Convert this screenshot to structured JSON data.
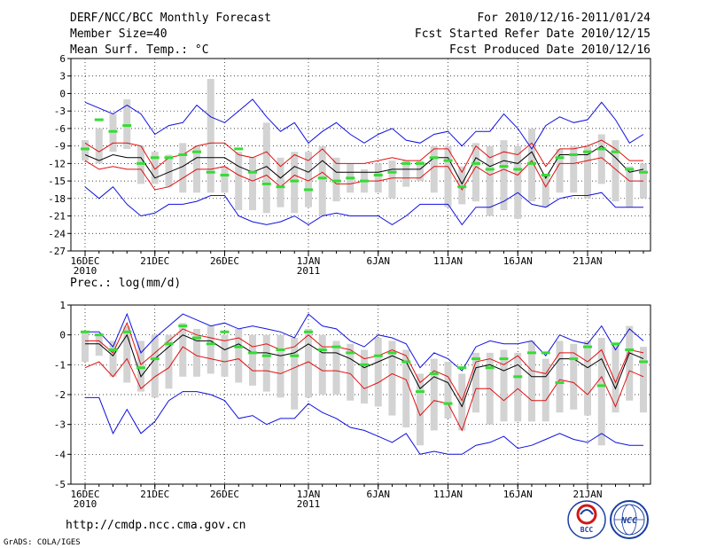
{
  "header": {
    "title": "DERF/NCC/BCC Monthly Forecast",
    "member_size": "Member Size=40",
    "variable": "Mean Surf. Temp.: °C",
    "forecast_for": "For 2010/12/16-2011/01/24",
    "fcst_started": "Fcst Started Refer Date 2010/12/15",
    "fcst_produced": "Fcst Produced Date 2010/12/16"
  },
  "footer": {
    "url": "http://cmdp.ncc.cma.gov.cn",
    "grads_credit": "GrADS: COLA/IGES",
    "logo_bcc": "BCC",
    "logo_ncc": "NCC"
  },
  "colors": {
    "outer_line": "#1010e0",
    "pct_line": "#e01010",
    "mean_line": "#000000",
    "box": "#d3d3d3",
    "marker": "#33dd33",
    "grid": "#000000"
  },
  "chart_data": [
    {
      "type": "box",
      "id": "temperature",
      "title": "Mean Surf. Temp.: °C",
      "ylim": [
        -27,
        6
      ],
      "yticks": [
        6,
        3,
        0,
        -3,
        -6,
        -9,
        -12,
        -15,
        -18,
        -21,
        -24,
        -27
      ],
      "xlim": [
        0,
        40
      ],
      "xticks": [
        {
          "day": 0,
          "label": "16DEC",
          "sub": "2010"
        },
        {
          "day": 5,
          "label": "21DEC",
          "sub": ""
        },
        {
          "day": 10,
          "label": "26DEC",
          "sub": ""
        },
        {
          "day": 16,
          "label": "1JAN",
          "sub": "2011"
        },
        {
          "day": 21,
          "label": "6JAN",
          "sub": ""
        },
        {
          "day": 26,
          "label": "11JAN",
          "sub": ""
        },
        {
          "day": 31,
          "label": "16JAN",
          "sub": ""
        },
        {
          "day": 36,
          "label": "21JAN",
          "sub": ""
        }
      ],
      "series": {
        "max": [
          -1.5,
          -2.5,
          -3.5,
          -2,
          -3.5,
          -7,
          -5.5,
          -5,
          -2,
          -4,
          -5,
          -3,
          -1,
          -4,
          -6.5,
          -5,
          -8.5,
          -6.5,
          -5,
          -7,
          -8.5,
          -7,
          -6,
          -8,
          -8.5,
          -7,
          -6.5,
          -9,
          -6.5,
          -6.5,
          -3.5,
          -6,
          -9.5,
          -5.5,
          -4,
          -5,
          -4.5,
          -1.5,
          -4.5,
          -8.5,
          -7
        ],
        "p90": [
          -8.5,
          -10,
          -8.5,
          -8.5,
          -9,
          -13,
          -11,
          -10.5,
          -9,
          -8.5,
          -8.5,
          -10.5,
          -11,
          -10,
          -12.5,
          -10.5,
          -11.5,
          -9.5,
          -12,
          -12,
          -12,
          -11.5,
          -11,
          -11.5,
          -11.5,
          -9.5,
          -9.5,
          -13.5,
          -9,
          -11,
          -10,
          -10.5,
          -8.5,
          -12.5,
          -9.5,
          -9.5,
          -9,
          -8,
          -9.5,
          -11.5,
          -11.5
        ],
        "mean": [
          -10.5,
          -11.5,
          -10.5,
          -11,
          -11,
          -14.5,
          -13.5,
          -12.5,
          -11,
          -11,
          -11,
          -12.5,
          -13.5,
          -12.5,
          -14.5,
          -12.5,
          -13.5,
          -11.5,
          -13.5,
          -13.5,
          -13.5,
          -13.5,
          -13,
          -13,
          -13,
          -11,
          -11,
          -15.5,
          -11,
          -12.5,
          -11.5,
          -12,
          -10,
          -14.5,
          -10.5,
          -10.5,
          -10.5,
          -9,
          -11,
          -13.5,
          -13
        ],
        "p10": [
          -11.5,
          -13,
          -12.5,
          -13,
          -13,
          -16.5,
          -16,
          -14.5,
          -13,
          -13,
          -12.5,
          -14,
          -15,
          -14,
          -16,
          -14,
          -15,
          -13.5,
          -15.5,
          -15.5,
          -15,
          -15,
          -14.5,
          -14.5,
          -14.5,
          -12.5,
          -12.5,
          -16.5,
          -12.5,
          -14,
          -13,
          -14,
          -11.5,
          -16,
          -12,
          -12,
          -11.5,
          -11,
          -13,
          -15,
          -15
        ],
        "min": [
          -16,
          -18,
          -16,
          -19,
          -21,
          -20.5,
          -19,
          -19,
          -18.5,
          -17.5,
          -17.5,
          -21,
          -22,
          -22.5,
          -22,
          -21,
          -22.5,
          -21,
          -20.5,
          -21,
          -21,
          -21,
          -22.5,
          -21,
          -19,
          -19,
          -19,
          -22.5,
          -19.5,
          -19.5,
          -18.5,
          -17,
          -19,
          -19.5,
          -18,
          -17.5,
          -17.5,
          -17,
          -19.5,
          -19.5,
          -19.5
        ],
        "box_top": [
          -8,
          -6,
          -3.5,
          -1,
          -9,
          -10,
          -10.5,
          -8.5,
          -9,
          2.5,
          -12.5,
          -10,
          -11,
          -5,
          -11,
          -10,
          -10,
          -9,
          -11,
          -12,
          -13,
          -12,
          -11.5,
          -11.5,
          -11.5,
          -9,
          -9,
          -12.5,
          -8.5,
          -9,
          -8,
          -9,
          -6,
          -14,
          -9.5,
          -9,
          -9,
          -7,
          -8,
          -12.5,
          -12
        ],
        "box_bottom": [
          -11.5,
          -12,
          -10,
          -9.5,
          -15.5,
          -15.5,
          -16,
          -17,
          -17,
          -17,
          -17,
          -20,
          -20,
          -20.5,
          -19.5,
          -20.5,
          -19.5,
          -21,
          -18.5,
          -17,
          -17,
          -17,
          -18,
          -16,
          -15,
          -17,
          -19.5,
          -19,
          -18.5,
          -21,
          -20,
          -21.5,
          -18.5,
          -19.5,
          -17,
          -17,
          -18,
          -15.5,
          -18.5,
          -19.5,
          -18
        ],
        "marker": [
          -9.5,
          -4.5,
          -6.5,
          -5.5,
          -12,
          -11,
          -11,
          -10.5,
          -10,
          -13.5,
          -14,
          -9.5,
          -13.5,
          -15.5,
          -16,
          -15,
          -16.5,
          -14.5,
          -15,
          -14.5,
          -15,
          -14,
          -13.5,
          -12,
          -12,
          -11,
          -11.5,
          -16,
          -12,
          -13,
          -12.5,
          -13,
          -12,
          -14,
          -11,
          -10.5,
          -10,
          -9.5,
          -10,
          -13,
          -13.5
        ]
      }
    },
    {
      "type": "box",
      "id": "precipitation",
      "title": "Prec.: log(mm/d)",
      "ylim": [
        -5,
        1
      ],
      "yticks": [
        1,
        0,
        -1,
        -2,
        -3,
        -4,
        -5
      ],
      "xlim": [
        0,
        40
      ],
      "xticks": [
        {
          "day": 0,
          "label": "16DEC",
          "sub": "2010"
        },
        {
          "day": 5,
          "label": "21DEC",
          "sub": ""
        },
        {
          "day": 10,
          "label": "26DEC",
          "sub": ""
        },
        {
          "day": 16,
          "label": "1JAN",
          "sub": "2011"
        },
        {
          "day": 21,
          "label": "6JAN",
          "sub": ""
        },
        {
          "day": 26,
          "label": "11JAN",
          "sub": ""
        },
        {
          "day": 31,
          "label": "16JAN",
          "sub": ""
        },
        {
          "day": 36,
          "label": "21JAN",
          "sub": ""
        }
      ],
      "series": {
        "max": [
          0.1,
          0.1,
          -0.4,
          0.7,
          -0.6,
          -0.1,
          0.3,
          0.7,
          0.5,
          0.3,
          0.4,
          0.2,
          0.3,
          0.2,
          0.1,
          -0.1,
          0.7,
          0.3,
          0.2,
          -0.2,
          -0.4,
          0,
          -0.1,
          -0.3,
          -1.1,
          -0.6,
          -0.8,
          -1.2,
          -0.4,
          -0.2,
          -0.3,
          -0.3,
          -0.2,
          -0.7,
          0,
          -0.2,
          -0.3,
          0.3,
          -0.5,
          0.2,
          -0.2
        ],
        "p90": [
          -0.2,
          -0.2,
          -0.6,
          0.4,
          -1,
          -0.6,
          -0.2,
          0.2,
          0,
          -0.1,
          -0.2,
          -0.1,
          -0.4,
          -0.3,
          -0.5,
          -0.4,
          0,
          -0.4,
          -0.4,
          -0.5,
          -0.8,
          -0.7,
          -0.5,
          -0.7,
          -1.6,
          -1.2,
          -1.4,
          -2.2,
          -0.9,
          -0.8,
          -1,
          -0.7,
          -1.2,
          -1.3,
          -0.6,
          -0.6,
          -0.9,
          -0.5,
          -1.6,
          -0.5,
          -0.6
        ],
        "mean": [
          -0.3,
          -0.3,
          -0.7,
          0,
          -1.4,
          -0.8,
          -0.4,
          0,
          -0.2,
          -0.2,
          -0.5,
          -0.3,
          -0.6,
          -0.6,
          -0.7,
          -0.6,
          -0.3,
          -0.6,
          -0.6,
          -0.8,
          -1.1,
          -0.9,
          -0.7,
          -0.9,
          -1.8,
          -1.4,
          -1.6,
          -2.4,
          -1.1,
          -1,
          -1.2,
          -1,
          -1.4,
          -1.4,
          -0.8,
          -0.8,
          -1.1,
          -0.8,
          -1.8,
          -0.6,
          -0.8
        ],
        "p10": [
          -1.1,
          -0.9,
          -1.4,
          -0.8,
          -1.8,
          -1.4,
          -1.1,
          -0.4,
          -0.7,
          -0.8,
          -0.9,
          -0.8,
          -1.2,
          -1.2,
          -1.3,
          -1.1,
          -0.9,
          -1.2,
          -1.2,
          -1.3,
          -1.8,
          -1.6,
          -1.3,
          -1.5,
          -2.7,
          -2.2,
          -2.3,
          -3.2,
          -1.8,
          -1.8,
          -2.2,
          -1.8,
          -2.2,
          -2.2,
          -1.5,
          -1.6,
          -2,
          -1.4,
          -2.4,
          -1.2,
          -1.4
        ],
        "min": [
          -2.1,
          -2.1,
          -3.3,
          -2.5,
          -3.3,
          -2.9,
          -2.2,
          -1.9,
          -1.9,
          -2,
          -2.2,
          -2.8,
          -2.7,
          -3,
          -2.8,
          -2.8,
          -2.3,
          -2.6,
          -2.8,
          -3.1,
          -3.2,
          -3.4,
          -3.6,
          -3.3,
          -4,
          -3.9,
          -4,
          -4,
          -3.7,
          -3.6,
          -3.4,
          -3.8,
          -3.7,
          -3.5,
          -3.3,
          -3.5,
          -3.6,
          -3.3,
          -3.6,
          -3.7,
          -3.7
        ],
        "box_top": [
          0.1,
          0,
          -0.2,
          0.3,
          -0.2,
          0,
          0,
          0.4,
          0.2,
          0.3,
          0,
          0.2,
          0,
          0,
          0,
          -0.1,
          0.2,
          0,
          -0.2,
          -0.3,
          -0.5,
          -0.1,
          -0.2,
          -0.5,
          -1.3,
          -0.8,
          -0.9,
          -1.3,
          -0.6,
          -0.6,
          -0.5,
          -0.6,
          -0.2,
          -0.8,
          -0.2,
          -0.3,
          -0.2,
          -0.1,
          -0.3,
          0.3,
          -0.4
        ],
        "box_bottom": [
          -0.9,
          -0.7,
          -1.4,
          -1.6,
          -1.9,
          -2.1,
          -1.8,
          -1.4,
          -1.4,
          -1.3,
          -1.4,
          -1.6,
          -1.7,
          -1.9,
          -2.1,
          -2.5,
          -2.1,
          -2,
          -2,
          -2.2,
          -2.3,
          -2.4,
          -2.7,
          -3.1,
          -3.7,
          -3.2,
          -2.8,
          -3.2,
          -2.6,
          -3,
          -2.9,
          -2.9,
          -2.9,
          -2.9,
          -2.6,
          -2.5,
          -2.7,
          -3.7,
          -2.6,
          -2.2,
          -2.6
        ],
        "marker": [
          0.1,
          0,
          -0.5,
          0.1,
          -1.1,
          -0.8,
          -0.3,
          0.3,
          -0.1,
          -0.3,
          0.1,
          -0.4,
          -0.6,
          -0.7,
          -0.5,
          -0.7,
          0.1,
          -0.5,
          -0.4,
          -0.6,
          -1,
          -0.7,
          -0.6,
          -0.9,
          -1.9,
          -1.3,
          -2.3,
          -1.1,
          -0.8,
          -1.1,
          -0.8,
          -1.4,
          -0.6,
          -0.6,
          -1.6,
          -0.8,
          -0.4,
          -1.7,
          -0.3,
          -0.5,
          -0.9
        ]
      }
    }
  ]
}
